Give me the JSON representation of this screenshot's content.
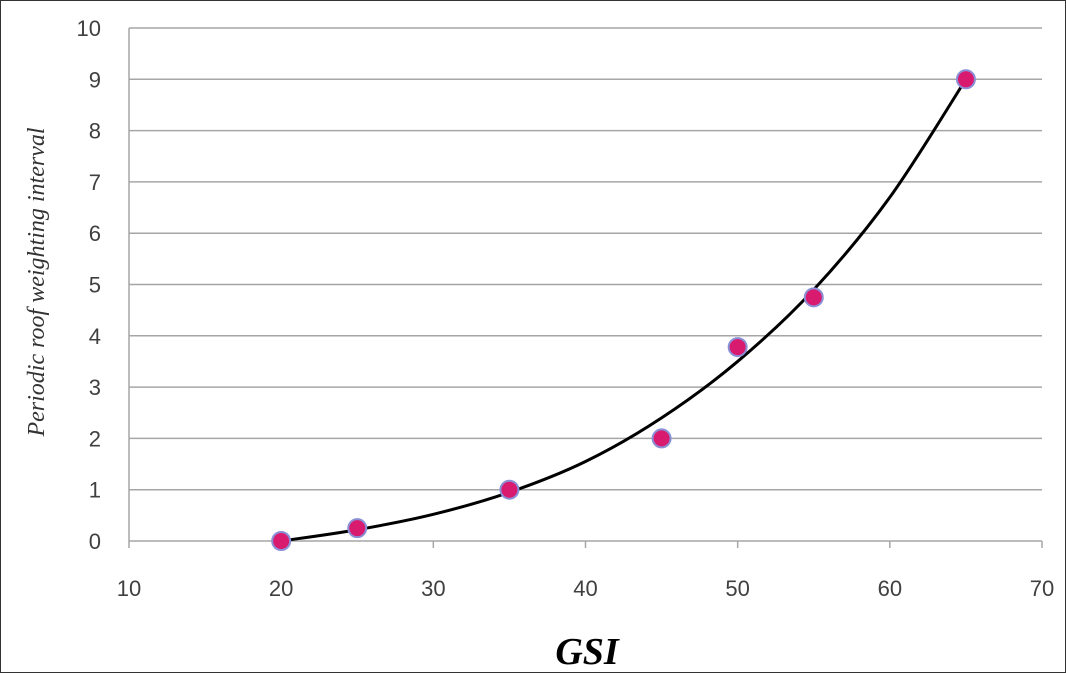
{
  "chart_data": {
    "type": "scatter",
    "xlabel": "GSI",
    "ylabel": "Periodic roof weighting interval",
    "xlim": [
      10,
      70
    ],
    "ylim": [
      0,
      10
    ],
    "x_ticks": [
      "10",
      "20",
      "30",
      "40",
      "50",
      "60",
      "70"
    ],
    "y_ticks": [
      "0",
      "1",
      "2",
      "3",
      "4",
      "5",
      "6",
      "7",
      "8",
      "9",
      "10"
    ],
    "grid": "horizontal",
    "series": [
      {
        "points": [
          {
            "x": 20,
            "y": 0.0
          },
          {
            "x": 25,
            "y": 0.25
          },
          {
            "x": 35,
            "y": 1.0
          },
          {
            "x": 45,
            "y": 2.0
          },
          {
            "x": 50,
            "y": 3.78
          },
          {
            "x": 55,
            "y": 4.75
          },
          {
            "x": 65,
            "y": 9.0
          }
        ],
        "marker_color": "#d81b6e",
        "marker_edge_color": "#8b8fd6"
      }
    ],
    "trendline": {
      "type": "exponential-like fit",
      "x_range": [
        20,
        65
      ],
      "color": "#000000",
      "samples": [
        {
          "x": 20,
          "y": 0.0
        },
        {
          "x": 25,
          "y": 0.22
        },
        {
          "x": 30,
          "y": 0.52
        },
        {
          "x": 35,
          "y": 0.95
        },
        {
          "x": 40,
          "y": 1.55
        },
        {
          "x": 45,
          "y": 2.4
        },
        {
          "x": 50,
          "y": 3.5
        },
        {
          "x": 55,
          "y": 4.9
        },
        {
          "x": 60,
          "y": 6.7
        },
        {
          "x": 65,
          "y": 9.0
        }
      ]
    }
  }
}
